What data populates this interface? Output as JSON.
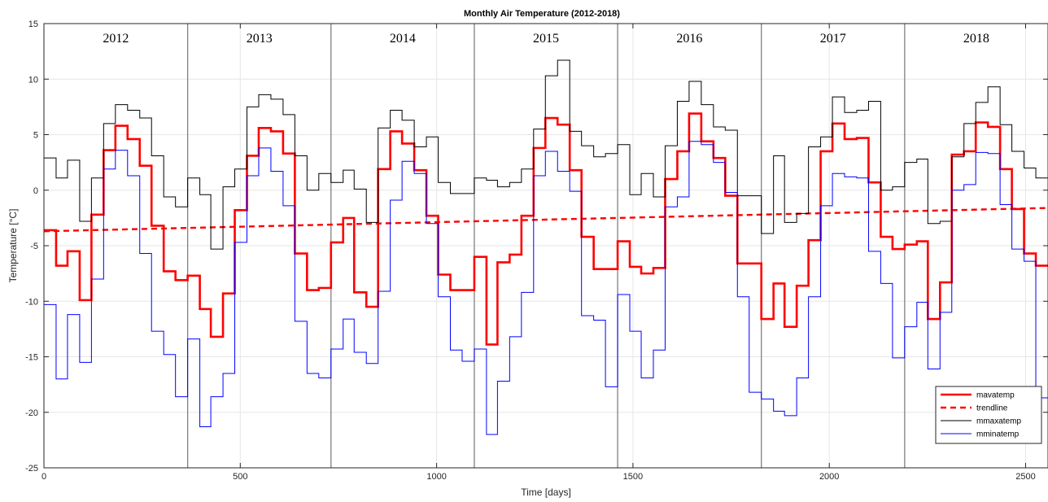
{
  "chart_data": {
    "type": "line",
    "title": "Monthly Air Temperature (2012-2018)",
    "xlabel": "Time [days]",
    "ylabel": "Temperature [°C]",
    "xlim": [
      0,
      2557
    ],
    "ylim": [
      -25,
      15
    ],
    "xticks": [
      0,
      500,
      1000,
      1500,
      2000,
      2500
    ],
    "yticks": [
      -25,
      -20,
      -15,
      -10,
      -5,
      0,
      5,
      10,
      15
    ],
    "grid": true,
    "legend_position": "bottom-right",
    "year_labels": [
      "2012",
      "2013",
      "2014",
      "2015",
      "2016",
      "2017",
      "2018"
    ],
    "year_boundaries": [
      366,
      731,
      1096,
      1461,
      1827,
      2192
    ],
    "x_month_starts": [
      0,
      31,
      60,
      91,
      121,
      152,
      182,
      213,
      244,
      274,
      305,
      335,
      366,
      397,
      425,
      456,
      486,
      517,
      547,
      578,
      609,
      639,
      670,
      700,
      731,
      762,
      790,
      821,
      851,
      882,
      912,
      943,
      974,
      1004,
      1035,
      1065,
      1096,
      1127,
      1155,
      1186,
      1216,
      1247,
      1277,
      1308,
      1339,
      1369,
      1400,
      1430,
      1461,
      1492,
      1521,
      1552,
      1582,
      1613,
      1643,
      1674,
      1705,
      1735,
      1766,
      1796,
      1827,
      1858,
      1886,
      1917,
      1947,
      1978,
      2008,
      2039,
      2070,
      2100,
      2131,
      2161,
      2192,
      2223,
      2251,
      2282,
      2312,
      2343,
      2373,
      2404,
      2435,
      2465,
      2496,
      2526
    ],
    "series": [
      {
        "name": "mavatemp",
        "color": "#ff0000",
        "style": "step",
        "values": [
          -3.6,
          -6.8,
          -5.5,
          -9.9,
          -2.2,
          3.6,
          5.8,
          4.6,
          2.2,
          -3.2,
          -7.3,
          -8.1,
          -7.7,
          -10.7,
          -13.2,
          -9.3,
          -1.8,
          3.1,
          5.6,
          5.3,
          3.3,
          -5.7,
          -9.0,
          -8.8,
          -4.7,
          -2.5,
          -9.2,
          -10.5,
          1.9,
          5.3,
          4.2,
          1.8,
          -2.3,
          -7.6,
          -9.0,
          -9.0,
          -6.0,
          -13.9,
          -6.5,
          -5.8,
          -2.3,
          3.8,
          6.5,
          5.9,
          1.8,
          -4.2,
          -7.1,
          -7.1,
          -4.6,
          -6.9,
          -7.5,
          -7.0,
          1.0,
          3.5,
          6.9,
          4.4,
          2.9,
          -0.5,
          -6.6,
          -6.6,
          -11.6,
          -8.4,
          -12.3,
          -8.6,
          -4.5,
          3.5,
          6.0,
          4.6,
          4.7,
          0.7,
          -4.2,
          -5.3,
          -4.9,
          -4.6,
          -11.6,
          -8.3,
          3.2,
          3.5,
          6.1,
          5.7,
          1.9,
          -1.7,
          -5.7,
          -6.8
        ]
      },
      {
        "name": "trendline",
        "color": "#ff0000",
        "style": "dashed",
        "x": [
          0,
          2557
        ],
        "y": [
          -3.7,
          -1.6
        ]
      },
      {
        "name": "mmaxatemp",
        "color": "#000000",
        "style": "step",
        "values": [
          2.9,
          1.1,
          2.7,
          -2.8,
          1.1,
          6.0,
          7.7,
          7.2,
          6.5,
          3.1,
          -0.6,
          -1.5,
          1.1,
          -0.4,
          -5.3,
          0.3,
          1.9,
          7.5,
          8.6,
          8.2,
          6.8,
          3.1,
          0.0,
          1.5,
          0.7,
          1.8,
          0.1,
          -2.9,
          5.6,
          7.2,
          6.3,
          3.9,
          4.8,
          0.7,
          -0.3,
          -0.3,
          1.1,
          0.9,
          0.3,
          0.7,
          1.9,
          5.5,
          10.3,
          11.7,
          5.3,
          4.0,
          3.0,
          3.3,
          4.1,
          -0.4,
          1.5,
          -0.6,
          4.0,
          8.0,
          9.8,
          7.7,
          5.7,
          5.4,
          -0.5,
          -0.5,
          -3.9,
          3.1,
          -2.9,
          -2.1,
          3.9,
          4.8,
          8.4,
          7.0,
          7.2,
          8.0,
          0.0,
          0.3,
          2.5,
          2.8,
          -3.0,
          -2.8,
          3.0,
          6.0,
          7.9,
          9.3,
          5.9,
          3.5,
          2.0,
          1.1
        ]
      },
      {
        "name": "mminatemp",
        "color": "#0000ff",
        "style": "step",
        "values": [
          -10.3,
          -17.0,
          -11.2,
          -15.5,
          -8.0,
          1.9,
          3.6,
          1.3,
          -5.7,
          -12.7,
          -14.8,
          -18.6,
          -13.4,
          -21.3,
          -18.6,
          -16.5,
          -4.7,
          1.3,
          3.8,
          1.7,
          -1.4,
          -11.8,
          -16.5,
          -16.9,
          -14.3,
          -11.6,
          -14.6,
          -15.6,
          -9.1,
          -0.9,
          2.6,
          1.5,
          -3.0,
          -9.6,
          -14.4,
          -15.4,
          -14.3,
          -22.0,
          -17.2,
          -13.2,
          -9.2,
          1.3,
          3.5,
          1.7,
          -0.1,
          -11.3,
          -11.7,
          -17.7,
          -9.4,
          -12.7,
          -16.9,
          -14.4,
          -1.5,
          -0.6,
          4.4,
          4.1,
          2.5,
          -0.2,
          -9.6,
          -18.2,
          -18.8,
          -19.9,
          -20.3,
          -16.9,
          -9.6,
          -1.4,
          1.5,
          1.2,
          1.1,
          -5.5,
          -8.4,
          -15.1,
          -12.3,
          -10.1,
          -16.1,
          -11.0,
          0.0,
          0.5,
          3.4,
          3.3,
          -1.3,
          -5.3,
          -6.4,
          -18.7
        ]
      }
    ]
  }
}
